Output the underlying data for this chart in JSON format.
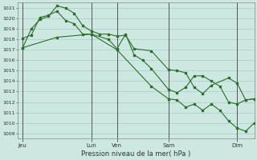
{
  "title": "Pression niveau de la mer( hPa )",
  "bg_color": "#cce8e0",
  "plot_bg_color": "#cce8e0",
  "grid_color": "#a8cfc8",
  "line_color": "#2d6e2d",
  "ylim": [
    1008.5,
    1021.5
  ],
  "yticks": [
    1009,
    1010,
    1011,
    1012,
    1013,
    1014,
    1015,
    1016,
    1017,
    1018,
    1019,
    1020,
    1021
  ],
  "day_labels": [
    "Jeu",
    "Lun",
    "Ven",
    "Sam",
    "Dim"
  ],
  "day_positions": [
    0,
    4.0,
    5.5,
    8.5,
    12.5
  ],
  "xlim": [
    -0.3,
    13.5
  ],
  "series1_x": [
    0,
    0.5,
    1.0,
    1.5,
    2.0,
    2.5,
    3.0,
    3.5,
    4.0,
    4.5,
    5.0,
    5.5,
    6.0,
    6.5,
    7.5,
    8.5,
    9.0,
    9.5,
    10.0,
    10.5,
    11.0,
    12.0,
    12.5,
    13.0,
    13.5
  ],
  "series1_y": [
    1017.2,
    1019.0,
    1019.9,
    1020.2,
    1021.2,
    1021.0,
    1020.5,
    1019.3,
    1018.8,
    1018.5,
    1018.5,
    1018.3,
    1018.4,
    1017.1,
    1016.9,
    1015.1,
    1015.0,
    1014.8,
    1013.4,
    1012.8,
    1013.6,
    1014.3,
    1013.8,
    1012.2,
    1012.3
  ],
  "series2_x": [
    0,
    0.5,
    1.0,
    1.5,
    2.0,
    2.5,
    3.0,
    3.5,
    4.0,
    5.0,
    5.5,
    6.0,
    6.5,
    7.0,
    7.5,
    8.5,
    9.0,
    9.5,
    10.0,
    10.5,
    11.0,
    11.5,
    12.0,
    12.5,
    13.0,
    13.5
  ],
  "series2_y": [
    1018.1,
    1018.4,
    1020.1,
    1020.3,
    1020.7,
    1019.8,
    1019.5,
    1018.5,
    1018.5,
    1018.0,
    1017.1,
    1018.5,
    1016.5,
    1016.0,
    1015.2,
    1013.2,
    1012.9,
    1013.4,
    1014.5,
    1014.5,
    1014.0,
    1013.5,
    1012.0,
    1011.8,
    1012.2,
    1012.3
  ],
  "series3_x": [
    0,
    2.0,
    4.0,
    5.5,
    7.5,
    8.5,
    9.0,
    9.5,
    10.0,
    10.5,
    11.0,
    11.5,
    12.0,
    12.5,
    13.0,
    13.5
  ],
  "series3_y": [
    1017.2,
    1018.2,
    1018.5,
    1017.0,
    1013.5,
    1012.3,
    1012.2,
    1011.5,
    1011.8,
    1011.2,
    1011.8,
    1011.2,
    1010.2,
    1009.5,
    1009.2,
    1010.0
  ]
}
